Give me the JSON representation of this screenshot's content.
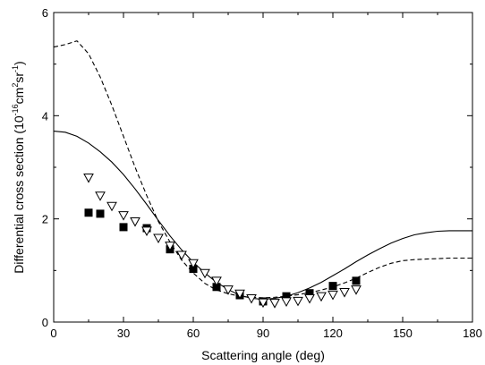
{
  "chart_data": {
    "type": "scatter",
    "title": "",
    "xlabel": "Scattering angle (deg)",
    "ylabel": {
      "prefix": "Differential cross section (10",
      "exp": "-16",
      "unit1": "cm",
      "unit1_exp": "2",
      "unit2": "sr",
      "unit2_exp": "-1",
      "suffix": ")"
    },
    "xlim": [
      0,
      180
    ],
    "ylim": [
      0,
      6
    ],
    "xticks": [
      0,
      30,
      60,
      90,
      120,
      150,
      180
    ],
    "yticks": [
      0,
      2,
      4,
      6
    ],
    "grid": false,
    "legend": "none",
    "series": [
      {
        "style": "solid-line",
        "x": [
          0,
          5,
          10,
          15,
          20,
          25,
          30,
          35,
          40,
          45,
          50,
          55,
          60,
          65,
          70,
          75,
          80,
          85,
          90,
          95,
          100,
          105,
          110,
          115,
          120,
          125,
          130,
          135,
          140,
          145,
          150,
          155,
          160,
          165,
          170,
          175,
          180
        ],
        "y": [
          3.7,
          3.68,
          3.6,
          3.47,
          3.3,
          3.1,
          2.86,
          2.58,
          2.28,
          1.97,
          1.67,
          1.4,
          1.16,
          0.95,
          0.77,
          0.63,
          0.52,
          0.46,
          0.44,
          0.46,
          0.5,
          0.57,
          0.66,
          0.77,
          0.9,
          1.03,
          1.17,
          1.3,
          1.42,
          1.53,
          1.62,
          1.69,
          1.73,
          1.76,
          1.77,
          1.77,
          1.77
        ]
      },
      {
        "style": "dashed-line",
        "x": [
          0,
          5,
          10,
          15,
          20,
          25,
          30,
          35,
          40,
          45,
          50,
          55,
          60,
          65,
          70,
          75,
          80,
          85,
          90,
          95,
          100,
          105,
          110,
          115,
          120,
          125,
          130,
          135,
          140,
          145,
          150,
          155,
          160,
          165,
          170,
          175,
          180
        ],
        "y": [
          5.33,
          5.38,
          5.45,
          5.2,
          4.75,
          4.2,
          3.6,
          3.0,
          2.45,
          1.95,
          1.55,
          1.2,
          0.95,
          0.75,
          0.62,
          0.55,
          0.5,
          0.48,
          0.47,
          0.48,
          0.5,
          0.53,
          0.57,
          0.62,
          0.68,
          0.76,
          0.85,
          0.96,
          1.06,
          1.14,
          1.19,
          1.21,
          1.22,
          1.23,
          1.24,
          1.24,
          1.24
        ]
      },
      {
        "style": "filled-square",
        "x": [
          15,
          20,
          30,
          40,
          50,
          60,
          70,
          80,
          90,
          100,
          110,
          120,
          130
        ],
        "y": [
          2.12,
          2.1,
          1.84,
          1.82,
          1.41,
          1.03,
          0.68,
          0.52,
          0.4,
          0.5,
          0.56,
          0.7,
          0.8
        ]
      },
      {
        "style": "open-triangle-down",
        "x": [
          15,
          20,
          25,
          30,
          35,
          40,
          45,
          50,
          55,
          60,
          65,
          70,
          75,
          80,
          85,
          90,
          95,
          100,
          105,
          110,
          115,
          120,
          125,
          130
        ],
        "y": [
          2.8,
          2.45,
          2.25,
          2.07,
          1.95,
          1.77,
          1.63,
          1.48,
          1.3,
          1.14,
          0.95,
          0.8,
          0.63,
          0.55,
          0.46,
          0.38,
          0.37,
          0.4,
          0.41,
          0.46,
          0.5,
          0.53,
          0.58,
          0.63
        ]
      }
    ]
  }
}
